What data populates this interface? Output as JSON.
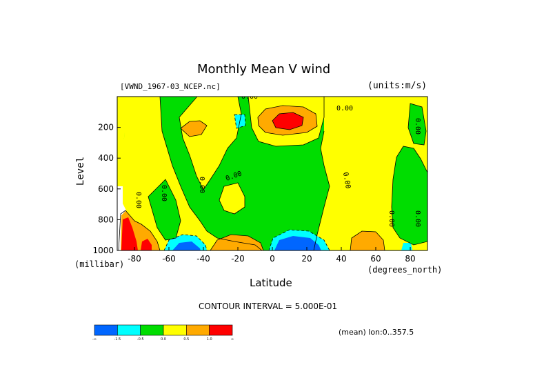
{
  "chart_data": {
    "type": "heatmap",
    "title": "Monthly Mean V wind",
    "dataset_label": "[VWND_1967-03_NCEP.nc]",
    "units_label": "(units:m/s)",
    "xlabel": "Latitude",
    "xunit": "(degrees_north)",
    "ylabel": "Level",
    "yunit": "(millibar)",
    "x_ticks": [
      "-80",
      "-60",
      "-40",
      "-20",
      "0",
      "20",
      "40",
      "60",
      "80"
    ],
    "x_tick_values": [
      -80,
      -60,
      -40,
      -20,
      0,
      20,
      40,
      60,
      80
    ],
    "y_ticks": [
      "200",
      "400",
      "600",
      "800",
      "1000"
    ],
    "y_tick_values": [
      200,
      400,
      600,
      800,
      1000
    ],
    "xlim": [
      -90,
      90
    ],
    "ylim": [
      1000,
      0
    ],
    "contour_interval_text": "CONTOUR INTERVAL = 5.000E-01",
    "contour_labels": [
      "0.00",
      "0.00",
      "0.00",
      "0.00",
      "0.00",
      "0.00",
      "0.00",
      "0.00",
      "0.00",
      "0.00"
    ],
    "colorbar": {
      "colors": [
        "#0066ff",
        "#00ffff",
        "#00dd00",
        "#ffff00",
        "#ffaa00",
        "#ff0000"
      ],
      "labels": [
        "-∞",
        "-1.5",
        "-0.5",
        "0.0",
        "0.5",
        "1.0",
        "∞"
      ]
    },
    "regions": [
      {
        "level": "negative-weak",
        "color": "#00dd00"
      },
      {
        "level": "near-zero-positive",
        "color": "#ffff00"
      },
      {
        "level": "positive-0.5",
        "color": "#ffaa00"
      },
      {
        "level": "positive-1.0",
        "color": "#ff0000"
      },
      {
        "level": "negative-1.5",
        "color": "#00ffff"
      },
      {
        "level": "negative-strong",
        "color": "#0066ff"
      }
    ],
    "features": [
      {
        "name": "upper-tropospheric positive core",
        "lat": 12,
        "level": 150,
        "max_class": "positive-1.0"
      },
      {
        "name": "near-surface negative core",
        "lat": 12,
        "level": 980,
        "max_class": "negative-strong"
      },
      {
        "name": "southern near-surface negative",
        "lat": -52,
        "level": 980,
        "max_class": "negative-strong"
      },
      {
        "name": "southern near-surface positive",
        "lat": -25,
        "level": 975,
        "max_class": "positive-0.5"
      },
      {
        "name": "polar surface positive",
        "lat": -78,
        "level": 960,
        "max_class": "positive-1.0"
      },
      {
        "name": "northern mid-latitude positive",
        "lat": 55,
        "level": 960,
        "max_class": "positive-0.5"
      }
    ]
  },
  "footer": {
    "mean_label": "(mean) lon:0..357.5"
  }
}
